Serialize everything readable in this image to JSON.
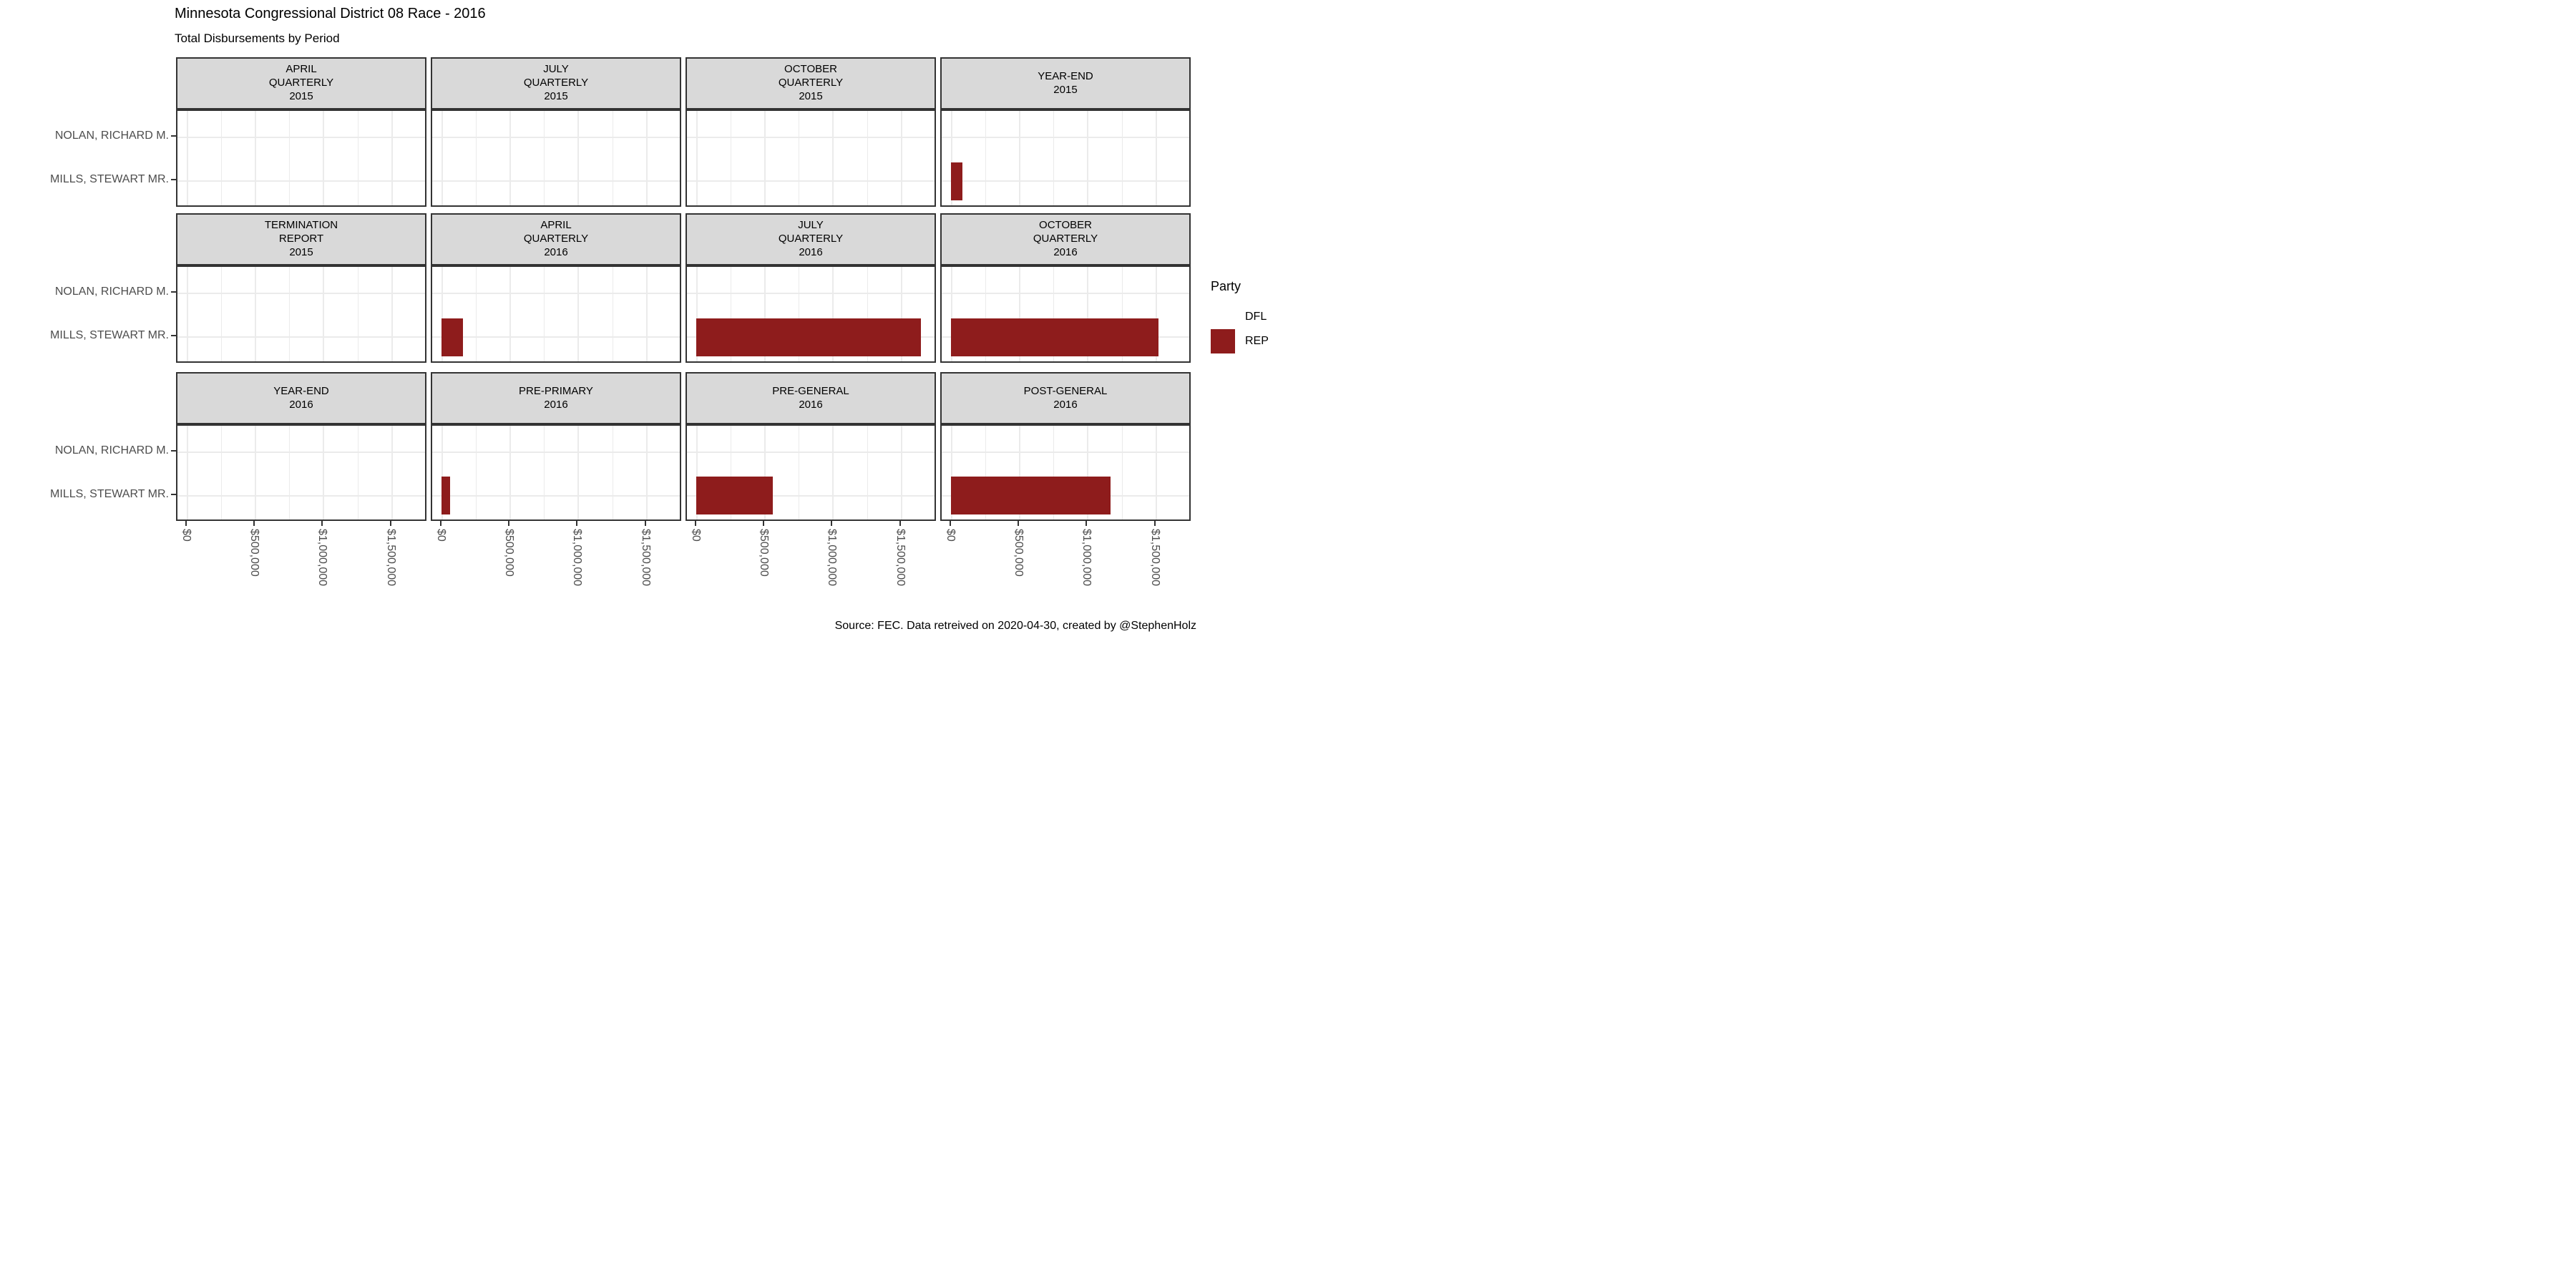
{
  "header": {
    "title": "Minnesota Congressional District 08 Race - 2016",
    "subtitle": "Total Disbursements by Period"
  },
  "caption": "Source: FEC. Data retreived on 2020-04-30, created by @StephenHolz",
  "legend": {
    "title": "Party",
    "items": [
      {
        "label": "DFL",
        "color": "#FFFFFF"
      },
      {
        "label": "REP",
        "color": "#8E1C1C"
      }
    ]
  },
  "colors": {
    "bar_rep": "#8E1C1C",
    "strip_fill": "#D9D9D9",
    "panel_border": "#333333",
    "gridline": "#EBEBEB",
    "axis_text": "#4D4D4D"
  },
  "chart_data": {
    "type": "bar",
    "orientation": "horizontal",
    "title": "Minnesota Congressional District 08 Race - 2016",
    "subtitle": "Total Disbursements by Period",
    "categories": [
      "NOLAN, RICHARD M.",
      "MILLS, STEWART MR."
    ],
    "category_parties": [
      "DFL",
      "REP"
    ],
    "legend_position": "right",
    "grid": true,
    "xlim": [
      0,
      1750000
    ],
    "x_ticks": [
      {
        "value": 0,
        "label": "$0"
      },
      {
        "value": 500000,
        "label": "$500,000"
      },
      {
        "value": 1000000,
        "label": "$1,000,000"
      },
      {
        "value": 1500000,
        "label": "$1,500,000"
      }
    ],
    "x_minor_gridlines": [
      250000,
      750000,
      1250000
    ],
    "facets": [
      {
        "label_lines": [
          "APRIL",
          "QUARTERLY",
          "2015"
        ],
        "values": [
          0,
          0
        ]
      },
      {
        "label_lines": [
          "JULY",
          "QUARTERLY",
          "2015"
        ],
        "values": [
          0,
          0
        ]
      },
      {
        "label_lines": [
          "OCTOBER",
          "QUARTERLY",
          "2015"
        ],
        "values": [
          0,
          0
        ]
      },
      {
        "label_lines": [
          "YEAR-END",
          "2015"
        ],
        "values": [
          0,
          85000
        ]
      },
      {
        "label_lines": [
          "TERMINATION",
          "REPORT",
          "2015"
        ],
        "values": [
          0,
          0
        ]
      },
      {
        "label_lines": [
          "APRIL",
          "QUARTERLY",
          "2016"
        ],
        "values": [
          0,
          155000
        ]
      },
      {
        "label_lines": [
          "JULY",
          "QUARTERLY",
          "2016"
        ],
        "values": [
          0,
          1650000
        ]
      },
      {
        "label_lines": [
          "OCTOBER",
          "QUARTERLY",
          "2016"
        ],
        "values": [
          0,
          1525000
        ]
      },
      {
        "label_lines": [
          "YEAR-END",
          "2016"
        ],
        "values": [
          0,
          0
        ]
      },
      {
        "label_lines": [
          "PRE-PRIMARY",
          "2016"
        ],
        "values": [
          0,
          65000
        ]
      },
      {
        "label_lines": [
          "PRE-GENERAL",
          "2016"
        ],
        "values": [
          0,
          560000
        ]
      },
      {
        "label_lines": [
          "POST-GENERAL",
          "2016"
        ],
        "values": [
          0,
          1170000
        ]
      }
    ]
  }
}
